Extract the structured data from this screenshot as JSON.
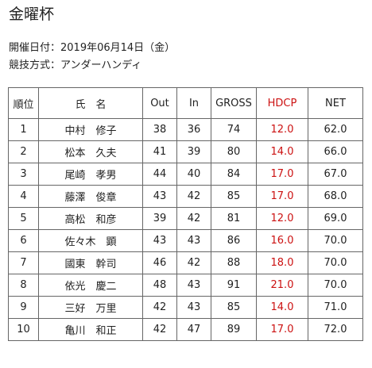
{
  "page": {
    "title": "金曜杯",
    "date_line": "開催日付：2019年06月14日（金）",
    "method_line": "競技方式：アンダーハンディ"
  },
  "table": {
    "headers": {
      "rank": "順位",
      "name": "氏　名",
      "out": "Out",
      "in": "In",
      "gross": "GROSS",
      "hdcp": "HDCP",
      "net": "NET"
    },
    "rows": [
      {
        "rank": "1",
        "name": "中村　修子",
        "out": "38",
        "in": "36",
        "gross": "74",
        "hdcp": "12.0",
        "net": "62.0"
      },
      {
        "rank": "2",
        "name": "松本　久夫",
        "out": "41",
        "in": "39",
        "gross": "80",
        "hdcp": "14.0",
        "net": "66.0"
      },
      {
        "rank": "3",
        "name": "尾崎　孝男",
        "out": "44",
        "in": "40",
        "gross": "84",
        "hdcp": "17.0",
        "net": "67.0"
      },
      {
        "rank": "4",
        "name": "藤澤　俊章",
        "out": "43",
        "in": "42",
        "gross": "85",
        "hdcp": "17.0",
        "net": "68.0"
      },
      {
        "rank": "5",
        "name": "高松　和彦",
        "out": "39",
        "in": "42",
        "gross": "81",
        "hdcp": "12.0",
        "net": "69.0"
      },
      {
        "rank": "6",
        "name": "佐々木　顕",
        "out": "43",
        "in": "43",
        "gross": "86",
        "hdcp": "16.0",
        "net": "70.0"
      },
      {
        "rank": "7",
        "name": "國東　幹司",
        "out": "46",
        "in": "42",
        "gross": "88",
        "hdcp": "18.0",
        "net": "70.0"
      },
      {
        "rank": "8",
        "name": "依光　慶二",
        "out": "48",
        "in": "43",
        "gross": "91",
        "hdcp": "21.0",
        "net": "70.0"
      },
      {
        "rank": "9",
        "name": "三好　万里",
        "out": "42",
        "in": "43",
        "gross": "85",
        "hdcp": "14.0",
        "net": "71.0"
      },
      {
        "rank": "10",
        "name": "亀川　和正",
        "out": "42",
        "in": "47",
        "gross": "89",
        "hdcp": "17.0",
        "net": "72.0"
      }
    ]
  },
  "colors": {
    "hdcp": "#cc1111",
    "text": "#222222",
    "border": "#666666"
  }
}
